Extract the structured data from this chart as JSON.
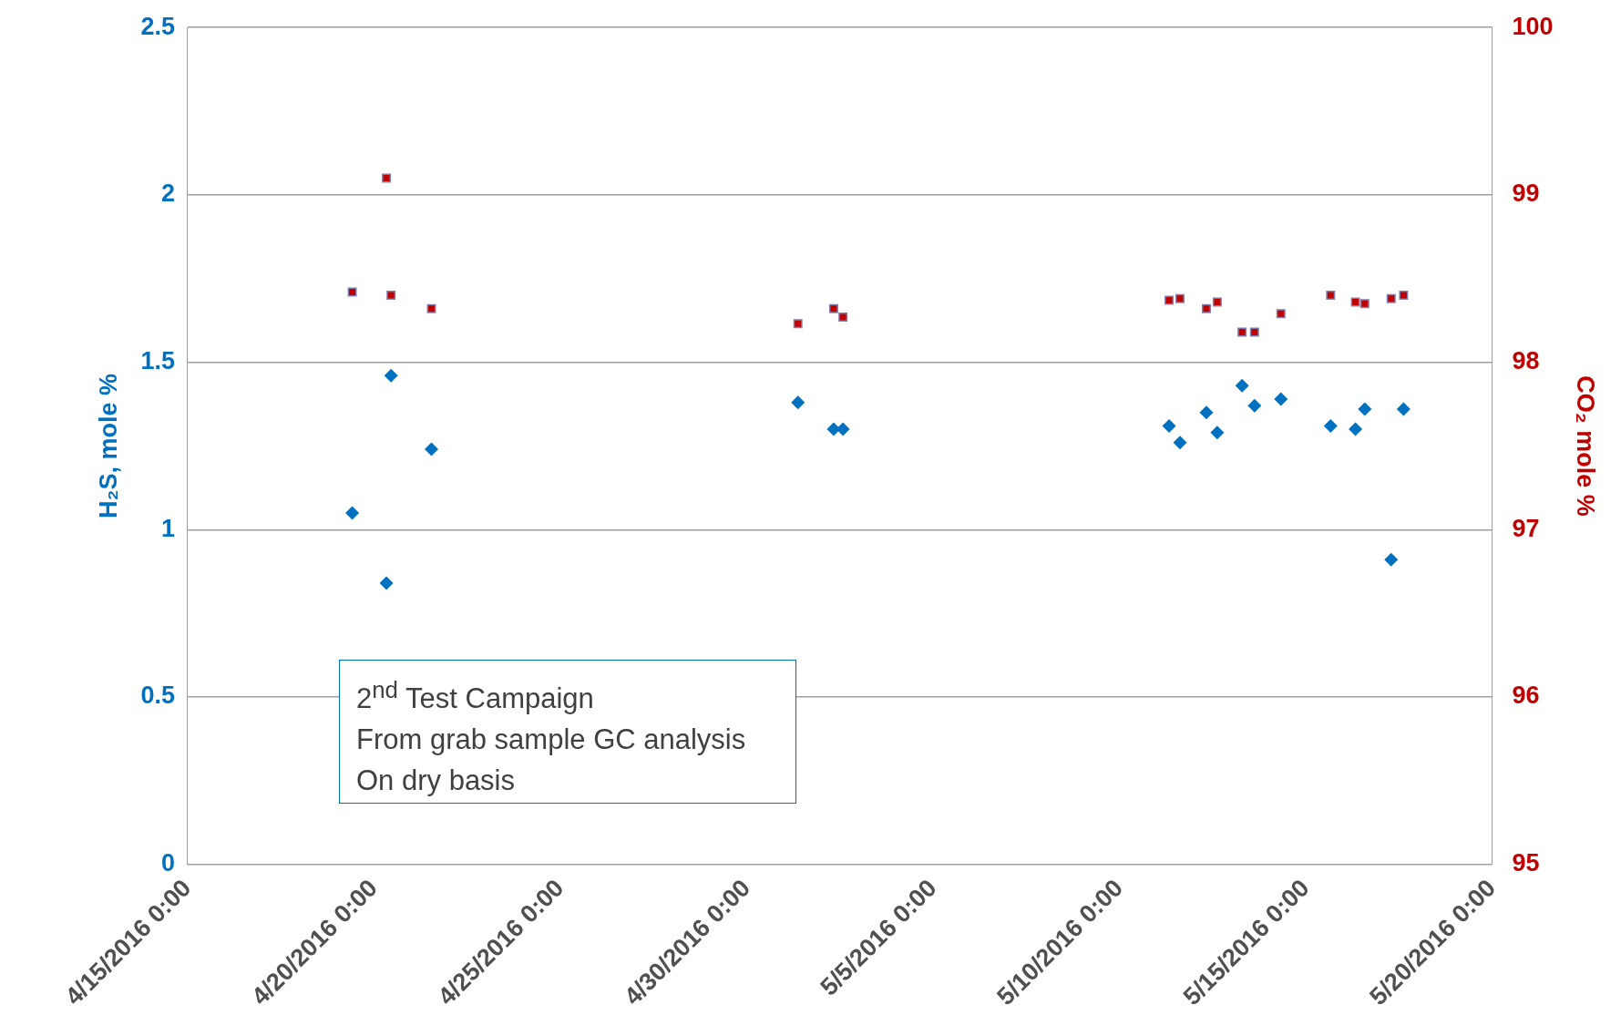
{
  "chart_data": {
    "type": "scatter",
    "ylabel": "H₂S, mole %",
    "y2label": "CO₂ mole %",
    "annotations": [
      "2$^{nd}$ Test Campaign",
      "From grab sample GC analysis",
      "On dry basis"
    ],
    "x": [
      "2016-04-19T10:00",
      "2016-04-20T08:00",
      "2016-04-20T11:00",
      "2016-04-21T13:00",
      "2016-05-01T09:00",
      "2016-05-02T08:00",
      "2016-05-02T14:00",
      "2016-05-11T08:00",
      "2016-05-11T15:00",
      "2016-05-12T08:00",
      "2016-05-12T15:00",
      "2016-05-13T07:00",
      "2016-05-13T15:00",
      "2016-05-14T08:00",
      "2016-05-15T16:00",
      "2016-05-16T08:00",
      "2016-05-16T14:00",
      "2016-05-17T07:00",
      "2016-05-17T15:00"
    ],
    "series": [
      {
        "color": "#0070c0",
        "marker": "diamond",
        "values": [
          1.05,
          0.84,
          1.46,
          1.24,
          1.38,
          1.3,
          1.3,
          1.31,
          1.26,
          1.35,
          1.29,
          1.43,
          1.37,
          1.39,
          1.31,
          1.3,
          1.36,
          0.91,
          1.36
        ]
      },
      {
        "color": "#c00000",
        "marker": "square",
        "axis": "y2",
        "values": [
          98.42,
          99.1,
          98.4,
          98.32,
          98.23,
          98.32,
          98.27,
          98.37,
          98.38,
          98.32,
          98.36,
          98.18,
          98.18,
          98.29,
          98.4,
          98.36,
          98.35,
          98.38,
          98.4
        ]
      }
    ],
    "xlim": [
      "2016-04-15T00:00",
      "2016-05-20T00:00"
    ],
    "xticks": [
      {
        "value": "2016-04-15T00:00",
        "label": "4/15/2016 0:00"
      },
      {
        "value": "2016-04-20T00:00",
        "label": "4/20/2016 0:00"
      },
      {
        "value": "2016-04-25T00:00",
        "label": "4/25/2016 0:00"
      },
      {
        "value": "2016-04-30T00:00",
        "label": "4/30/2016 0:00"
      },
      {
        "value": "2016-05-05T00:00",
        "label": "5/5/2016 0:00"
      },
      {
        "value": "2016-05-10T00:00",
        "label": "5/10/2016 0:00"
      },
      {
        "value": "2016-05-15T00:00",
        "label": "5/15/2016 0:00"
      },
      {
        "value": "2016-05-20T00:00",
        "label": "5/20/2016 0:00"
      }
    ],
    "ylim": [
      0,
      2.5
    ],
    "yticks": [
      0,
      0.5,
      1,
      1.5,
      2,
      2.5
    ],
    "y2lim": [
      95,
      100
    ],
    "y2ticks": [
      95,
      96,
      97,
      98,
      99,
      100
    ],
    "grid": "y",
    "legend": false
  }
}
